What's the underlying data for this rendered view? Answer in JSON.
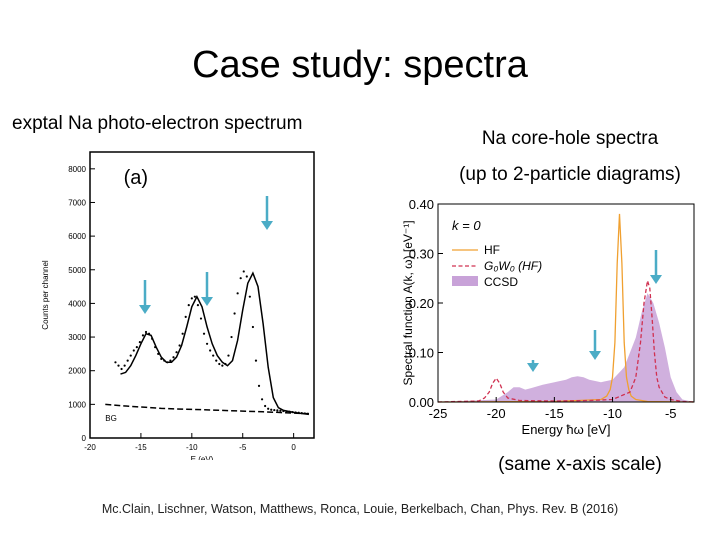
{
  "slide": {
    "title": "Case study: spectra",
    "left_caption": "exptal Na photo-electron spectrum",
    "right_caption_line1": "Na core-hole spectra",
    "right_caption_line2": "(up to 2-particle diagrams)",
    "axis_note": "(same x-axis scale)",
    "citation": "Mc.Clain, Lischner, Watson, Matthews, Ronca, Louie, Berkelbach, Chan, Phys. Rev. B (2016)",
    "arrow_color": "#4bacc6"
  },
  "chart_data": [
    {
      "type": "scatter",
      "panel_label": "(a)",
      "xlabel": "E (eV)",
      "ylabel": "Counts per channel",
      "xlim": [
        -20,
        2
      ],
      "ylim": [
        0,
        8500
      ],
      "xticks": [
        -20,
        -15,
        -10,
        -5,
        0
      ],
      "xtick_labels": [
        "-20",
        "-15",
        "-10",
        "-5",
        "0"
      ],
      "yticks": [
        0,
        1000,
        2000,
        3000,
        4000,
        5000,
        6000,
        7000,
        8000
      ],
      "ytick_labels": [
        "0",
        "1000",
        "2000",
        "3000",
        "4000",
        "5000",
        "6000",
        "7000",
        "8000"
      ],
      "annotation": "BG",
      "series": [
        {
          "style": "dots",
          "x": [
            -17.5,
            -17.2,
            -16.9,
            -16.6,
            -16.3,
            -16.0,
            -15.7,
            -15.4,
            -15.1,
            -14.8,
            -14.5,
            -14.2,
            -13.9,
            -13.6,
            -13.3,
            -13.0,
            -12.7,
            -12.4,
            -12.1,
            -11.8,
            -11.5,
            -11.2,
            -10.9,
            -10.6,
            -10.3,
            -10.0,
            -9.7,
            -9.4,
            -9.1,
            -8.8,
            -8.5,
            -8.2,
            -7.9,
            -7.6,
            -7.3,
            -7.0,
            -6.7,
            -6.4,
            -6.1,
            -5.8,
            -5.5,
            -5.2,
            -4.9,
            -4.6,
            -4.3,
            -4.0,
            -3.7,
            -3.4,
            -3.1,
            -2.8,
            -2.5,
            -2.2,
            -1.9,
            -1.6,
            -1.3,
            -1.0,
            -0.7,
            -0.4,
            -0.1,
            0.2,
            0.5,
            0.8,
            1.1,
            1.4
          ],
          "y": [
            2250,
            2150,
            2050,
            2150,
            2300,
            2450,
            2600,
            2700,
            2850,
            3050,
            3150,
            3100,
            2950,
            2700,
            2500,
            2350,
            2300,
            2250,
            2300,
            2400,
            2550,
            2750,
            3100,
            3600,
            3950,
            4150,
            4200,
            3950,
            3550,
            3100,
            2800,
            2600,
            2450,
            2300,
            2200,
            2150,
            2200,
            2450,
            3000,
            3700,
            4300,
            4750,
            4950,
            4800,
            4200,
            3300,
            2300,
            1550,
            1150,
            950,
            870,
            840,
            830,
            820,
            810,
            800,
            790,
            780,
            770,
            760,
            750,
            740,
            730,
            720
          ]
        },
        {
          "style": "solid",
          "x": [
            -17.0,
            -16.5,
            -16.0,
            -15.5,
            -15.0,
            -14.5,
            -14.0,
            -13.5,
            -13.0,
            -12.5,
            -12.0,
            -11.5,
            -11.0,
            -10.5,
            -10.0,
            -9.5,
            -9.0,
            -8.5,
            -8.0,
            -7.5,
            -7.0,
            -6.5,
            -6.0,
            -5.5,
            -5.0,
            -4.5,
            -4.0,
            -3.5,
            -3.0,
            -2.5,
            -2.0,
            -1.5,
            -1.0,
            -0.5,
            0.0,
            0.5,
            1.0,
            1.5
          ],
          "y": [
            1900,
            1950,
            2150,
            2450,
            2800,
            3100,
            3050,
            2700,
            2400,
            2250,
            2250,
            2400,
            2750,
            3300,
            3900,
            4200,
            3900,
            3300,
            2800,
            2450,
            2250,
            2150,
            2300,
            2900,
            3800,
            4600,
            4900,
            4500,
            3400,
            2100,
            1200,
            900,
            820,
            790,
            760,
            740,
            720,
            700
          ]
        },
        {
          "style": "dashed",
          "x": [
            -18.5,
            -17.0,
            -15.0,
            -13.0,
            -11.0,
            -9.0,
            -7.0,
            -5.0,
            -3.0,
            -1.5,
            0.0,
            1.5
          ],
          "y": [
            1000,
            960,
            920,
            880,
            860,
            840,
            820,
            800,
            780,
            760,
            740,
            720
          ]
        }
      ]
    },
    {
      "type": "line",
      "panel_label": "k = 0",
      "xlabel": "Energy ħω [eV]",
      "ylabel": "Spectral function A(k, ω)  [eV⁻¹]",
      "xlim": [
        -25,
        -3
      ],
      "ylim": [
        0,
        0.4
      ],
      "xticks": [
        -25,
        -20,
        -15,
        -10,
        -5
      ],
      "xtick_labels": [
        "-25",
        "-20",
        "-15",
        "-10",
        "-5"
      ],
      "yticks": [
        0,
        0.1,
        0.2,
        0.3,
        0.4
      ],
      "ytick_labels": [
        "0.00",
        "0.10",
        "0.20",
        "0.30",
        "0.40"
      ],
      "legend": "top-left",
      "series": [
        {
          "name": "HF",
          "color": "#f0a030",
          "x": [
            -25,
            -15,
            -11,
            -10.5,
            -10.2,
            -10.0,
            -9.8,
            -9.6,
            -9.4,
            -9.2,
            -9.0,
            -8.8,
            -8.6,
            -8.4,
            -8.0,
            -7.0,
            -3
          ],
          "y": [
            0,
            0.001,
            0.005,
            0.012,
            0.025,
            0.05,
            0.12,
            0.28,
            0.38,
            0.28,
            0.12,
            0.05,
            0.025,
            0.012,
            0.005,
            0.001,
            0
          ]
        },
        {
          "name": "G₀W₀ (HF)",
          "color": "#d03050",
          "x": [
            -25,
            -21.5,
            -21.0,
            -20.6,
            -20.3,
            -20.0,
            -19.7,
            -19.4,
            -19.0,
            -18.0,
            -15.0,
            -12.0,
            -10.0,
            -8.5,
            -8.0,
            -7.6,
            -7.3,
            -7.0,
            -6.8,
            -6.6,
            -6.4,
            -6.2,
            -6.0,
            -5.5,
            -5.0,
            -4.0,
            -3
          ],
          "y": [
            0,
            0.002,
            0.008,
            0.02,
            0.038,
            0.048,
            0.038,
            0.02,
            0.008,
            0.003,
            0.002,
            0.003,
            0.005,
            0.02,
            0.05,
            0.12,
            0.2,
            0.245,
            0.23,
            0.17,
            0.1,
            0.05,
            0.03,
            0.01,
            0.005,
            0.001,
            0
          ]
        },
        {
          "name": "CCSD",
          "color": "#c8a2d8",
          "x": [
            -25,
            -20,
            -19,
            -18.5,
            -18,
            -17.5,
            -17,
            -16,
            -15,
            -14,
            -13.5,
            -13,
            -12.5,
            -12,
            -11,
            -10,
            -9,
            -8.5,
            -8,
            -7.5,
            -7,
            -6.5,
            -6,
            -5.5,
            -5,
            -4.5,
            -4,
            -3
          ],
          "y": [
            0,
            0.005,
            0.02,
            0.03,
            0.03,
            0.025,
            0.028,
            0.035,
            0.04,
            0.045,
            0.05,
            0.052,
            0.05,
            0.045,
            0.04,
            0.045,
            0.07,
            0.1,
            0.13,
            0.18,
            0.22,
            0.2,
            0.16,
            0.11,
            0.05,
            0.02,
            0.005,
            0
          ]
        }
      ]
    }
  ]
}
